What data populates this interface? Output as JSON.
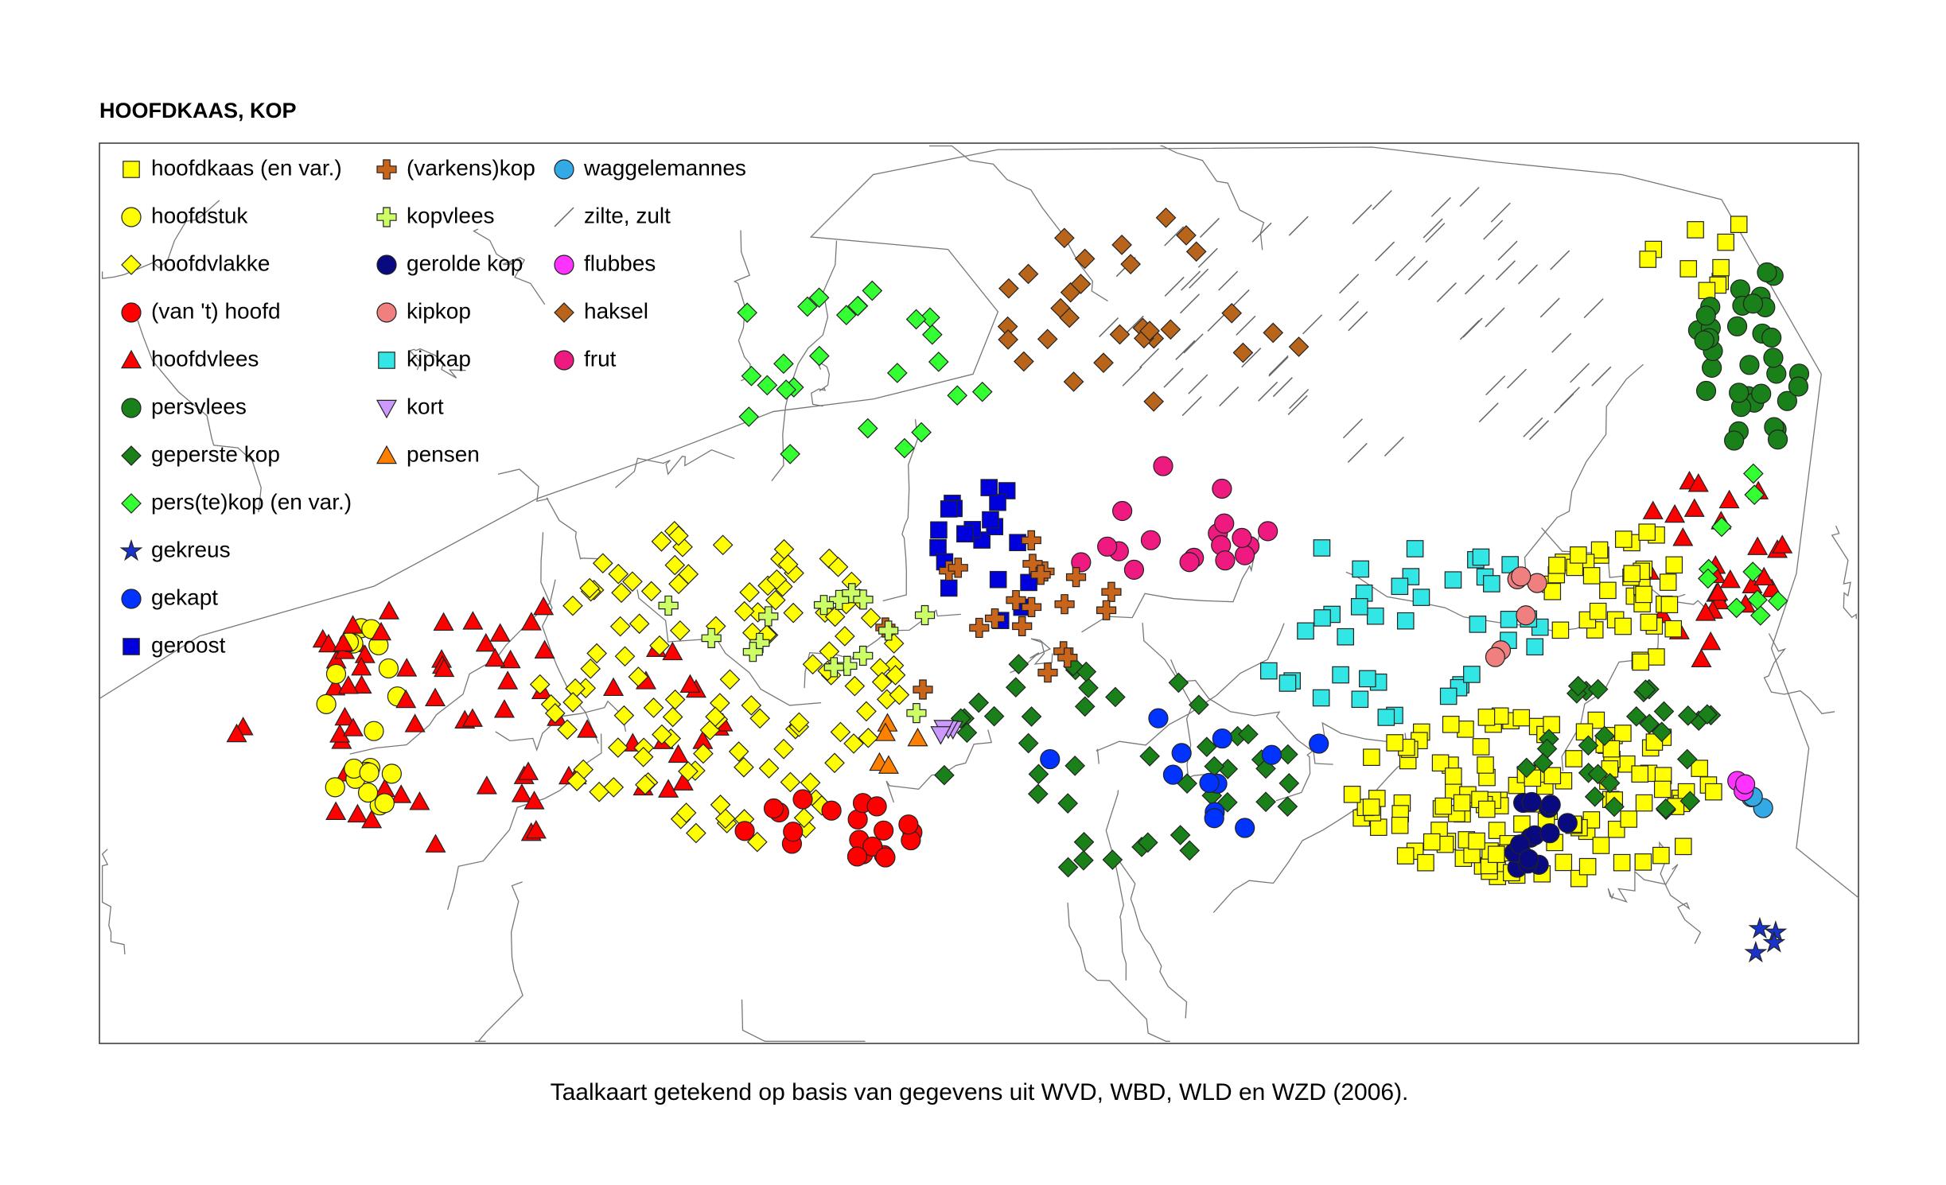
{
  "title": "HOOFDKAAS, KOP",
  "legend": [
    {
      "label": "hoofdkaas (en var.)"
    },
    {
      "label": "hoofdstuk"
    },
    {
      "label": "hoofdvlakke"
    },
    {
      "label": "(van 't) hoofd"
    },
    {
      "label": "hoofdvlees"
    },
    {
      "label": "persvlees"
    },
    {
      "label": "geperste kop"
    },
    {
      "label": "pers(te)kop (en var.)"
    },
    {
      "label": "gekreus"
    },
    {
      "label": "gekapt"
    },
    {
      "label": "geroost"
    },
    {
      "label": "(varkens)kop"
    },
    {
      "label": "kopvlees"
    },
    {
      "label": "gerolde kop"
    },
    {
      "label": "kipkop"
    },
    {
      "label": "kipkap"
    },
    {
      "label": "kort"
    },
    {
      "label": "pensen"
    },
    {
      "label": "waggelemannes"
    },
    {
      "label": "zilte, zult"
    },
    {
      "label": "flubbes"
    },
    {
      "label": "haksel"
    },
    {
      "label": "frut"
    }
  ],
  "caption": "Taalkaart getekend op basis van gegevens uit WVD, WBD, WLD en WZD (2006)."
}
